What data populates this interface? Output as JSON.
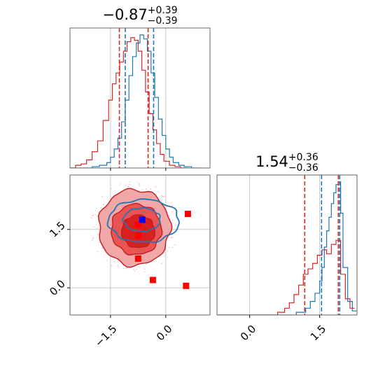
{
  "chart_data": [
    {
      "type": "histogram",
      "panel": "top-left",
      "title": {
        "value": "−0.87",
        "sup": "+0.39",
        "sub": "−0.39"
      },
      "xlim": [
        -2.6,
        1.2
      ],
      "colors": {
        "red": "#d62728",
        "blue": "#1f77b4"
      },
      "grid": true,
      "series": [
        {
          "color": "red",
          "x": [
            -2.6,
            -2.45,
            -2.3,
            -2.15,
            -2.0,
            -1.85,
            -1.7,
            -1.55,
            -1.45,
            -1.35,
            -1.25,
            -1.15,
            -1.05,
            -0.95,
            -0.85,
            -0.75,
            -0.65,
            -0.55,
            -0.45,
            -0.35,
            -0.25,
            -0.15,
            -0.05,
            0.1,
            0.25,
            0.4,
            0.6
          ],
          "values": [
            0.0,
            0.02,
            0.03,
            0.06,
            0.12,
            0.2,
            0.35,
            0.5,
            0.62,
            0.7,
            0.78,
            0.86,
            0.93,
            0.96,
            0.94,
            0.86,
            0.72,
            0.56,
            0.4,
            0.28,
            0.18,
            0.1,
            0.05,
            0.02,
            0.01,
            0.0,
            0.0
          ]
        },
        {
          "color": "blue",
          "x": [
            -2.6,
            -2.3,
            -2.0,
            -1.8,
            -1.6,
            -1.5,
            -1.4,
            -1.3,
            -1.2,
            -1.1,
            -1.0,
            -0.9,
            -0.8,
            -0.7,
            -0.6,
            -0.5,
            -0.4,
            -0.3,
            -0.2,
            -0.1,
            0.0,
            0.1,
            0.2,
            0.35,
            0.5,
            0.7,
            1.0
          ],
          "values": [
            0.0,
            0.0,
            0.01,
            0.02,
            0.04,
            0.08,
            0.14,
            0.22,
            0.34,
            0.5,
            0.68,
            0.82,
            0.92,
            0.98,
            0.95,
            0.86,
            0.7,
            0.52,
            0.36,
            0.24,
            0.14,
            0.08,
            0.04,
            0.02,
            0.01,
            0.0,
            0.0
          ]
        }
      ],
      "quantile_lines": {
        "red": [
          -1.26,
          -0.48
        ],
        "blue": [
          -1.1,
          -0.33
        ]
      }
    },
    {
      "type": "histogram",
      "panel": "bottom-right",
      "title": {
        "value": "1.54",
        "sup": "+0.36",
        "sub": "−0.36"
      },
      "xlim": [
        -0.7,
        2.3
      ],
      "ticks": [
        "0.0",
        "1.5"
      ],
      "tick_values": [
        0.0,
        1.5
      ],
      "colors": {
        "red": "#d62728",
        "blue": "#1f77b4"
      },
      "grid": true,
      "series": [
        {
          "color": "red",
          "x": [
            -0.7,
            0.0,
            0.6,
            0.75,
            0.85,
            0.95,
            1.05,
            1.15,
            1.25,
            1.35,
            1.45,
            1.55,
            1.65,
            1.75,
            1.85,
            1.95,
            2.05,
            2.15,
            2.25
          ],
          "values": [
            0.0,
            0.0,
            0.02,
            0.05,
            0.09,
            0.15,
            0.22,
            0.3,
            0.34,
            0.38,
            0.44,
            0.48,
            0.45,
            0.52,
            0.55,
            0.3,
            0.12,
            0.05,
            0.03
          ]
        },
        {
          "color": "blue",
          "x": [
            -0.7,
            0.0,
            0.8,
            1.0,
            1.2,
            1.3,
            1.4,
            1.5,
            1.55,
            1.6,
            1.65,
            1.7,
            1.75,
            1.8,
            1.85,
            1.9,
            1.95,
            2.0,
            2.1,
            2.2,
            2.3
          ],
          "values": [
            0.0,
            0.0,
            0.0,
            0.02,
            0.05,
            0.1,
            0.16,
            0.25,
            0.35,
            0.5,
            0.62,
            0.72,
            0.82,
            0.9,
            0.96,
            0.98,
            0.75,
            0.35,
            0.1,
            0.03,
            0.0
          ]
        }
      ],
      "quantile_lines": {
        "red": [
          1.18,
          1.9
        ],
        "blue": [
          1.54,
          1.93
        ]
      }
    },
    {
      "type": "scatter_contour",
      "panel": "bottom-left",
      "xlim": [
        -2.6,
        1.2
      ],
      "ylim": [
        -0.7,
        2.9
      ],
      "x_ticks": [
        "−1.5",
        "0.0"
      ],
      "x_tick_values": [
        -1.5,
        0.0
      ],
      "y_ticks": [
        "0.0",
        "1.5"
      ],
      "y_tick_values": [
        0.0,
        1.5
      ],
      "grid": true,
      "red_contours": [
        {
          "level": "outer",
          "cx": -0.85,
          "cy": 1.55,
          "rx": 0.97,
          "ry": 0.98,
          "fill": "#f2a8a8"
        },
        {
          "level": "middle",
          "cx": -0.8,
          "cy": 1.5,
          "rx": 0.68,
          "ry": 0.65,
          "fill": "#e85454"
        },
        {
          "level": "inner",
          "cx": -0.75,
          "cy": 1.45,
          "rx": 0.45,
          "ry": 0.42,
          "fill": "#d9201f"
        }
      ],
      "blue_contours": [
        {
          "level": "outer",
          "cx": -0.6,
          "cy": 1.72,
          "rx": 0.96,
          "ry": 0.55
        },
        {
          "level": "inner",
          "cx": -0.65,
          "cy": 1.75,
          "rx": 0.5,
          "ry": 0.3
        }
      ],
      "red_markers": [
        {
          "x": 0.6,
          "y": 1.9
        },
        {
          "x": -0.75,
          "y": 1.62
        },
        {
          "x": -0.75,
          "y": 1.35
        },
        {
          "x": -0.75,
          "y": 0.75
        },
        {
          "x": -0.35,
          "y": 0.2
        },
        {
          "x": 0.55,
          "y": 0.05
        }
      ],
      "blue_markers": [
        {
          "x": -0.64,
          "y": 1.75
        }
      ]
    }
  ]
}
